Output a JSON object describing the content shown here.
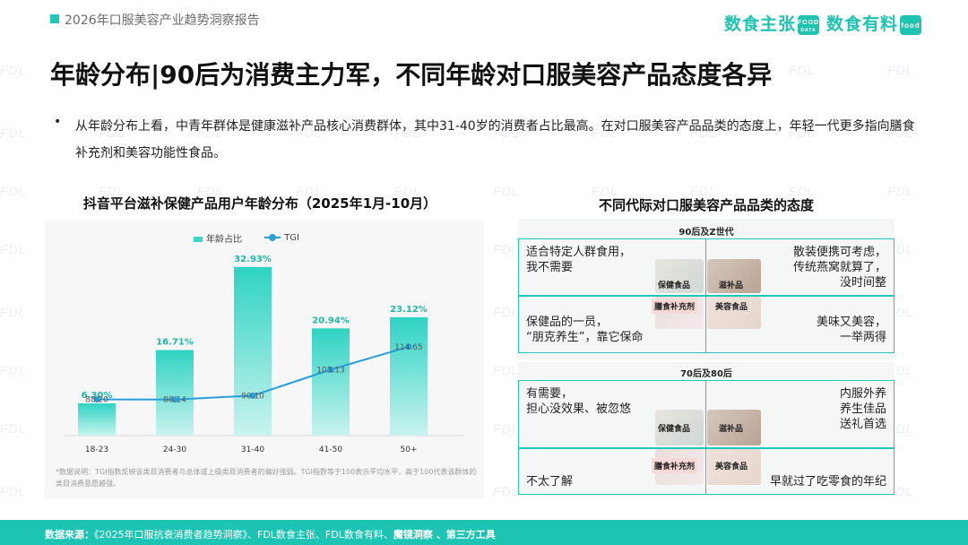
{
  "header": {
    "report_title": "2026年口服美容产业趋势洞察报告",
    "logo_1": "数食主张",
    "logo_2": "数食有料"
  },
  "watermark": "FDL",
  "title": "年龄分布|90后为消费主力军，不同年龄对口服美容产品态度各异",
  "bullet": "从年龄分布上看，中青年群体是健康滋补产品核心消费群体，其中31-40岁的消费者占比最高。在对口服美容产品品类的态度上，年轻一代更多指向膳食补充剂和美容功能性食品。",
  "left_chart": {
    "title": "抖音平台滋补保健产品用户年龄分布（2025年1月-10月）",
    "note": "*数据说明：TGI指数反映该类目消费者与总体或上级类目消费者的偏好强弱。TGI指数等于100表示平均水平，高于100代表该群体的类目消费意愿越强。"
  },
  "chart_data": {
    "type": "bar",
    "categories": [
      "18-23",
      "24-30",
      "31-40",
      "41-50",
      "50+"
    ],
    "series": [
      {
        "name": "年龄占比",
        "type": "bar",
        "values": [
          6.3,
          16.71,
          32.93,
          20.94,
          23.12
        ],
        "labels": [
          "6.30%",
          "16.71%",
          "32.93%",
          "20.94%",
          "23.12%"
        ]
      },
      {
        "name": "TGI",
        "type": "line",
        "values": [
          88.2,
          88.14,
          90.1,
          103.13,
          114.65
        ],
        "labels": [
          "88.20",
          "88.14",
          "90.10",
          "103.13",
          "114.65"
        ]
      }
    ],
    "legend_position": "top",
    "colors": {
      "bar": "#3ad6c8",
      "line": "#2a9fd6"
    }
  },
  "right_panel": {
    "title": "不同代际对口服美容产品品类的态度",
    "groups": [
      {
        "name": "90后及Z世代",
        "top_left": "适合特定人群食用，\n我不需要",
        "top_right": "散装便携可考虑，\n传统燕窝就算了，\n没时间整",
        "bottom_left": "保健品的一员，\n“朋克养生”，靠它保命",
        "bottom_right": "美味又美容，\n一举两得",
        "cat_tl": "保健食品",
        "cat_tr": "滋补品",
        "cat_bl": "膳食补充剂",
        "cat_br": "美容食品"
      },
      {
        "name": "70后及80后",
        "top_left": "有需要，\n担心没效果、被忽悠",
        "top_right": "内服外养\n养生佳品\n送礼首选",
        "bottom_left": "不太了解",
        "bottom_right": "早就过了吃零食的年纪",
        "cat_tl": "保健食品",
        "cat_tr": "滋补品",
        "cat_bl": "膳食补充剂",
        "cat_br": "美容食品"
      }
    ]
  },
  "footer": {
    "label": "数据来源：",
    "sources": "《2025年口服抗衰消费者趋势洞察》、FDL数食主张、FDL数食有料、",
    "bold_tail": "魔镜洞察 、第三方工具"
  }
}
